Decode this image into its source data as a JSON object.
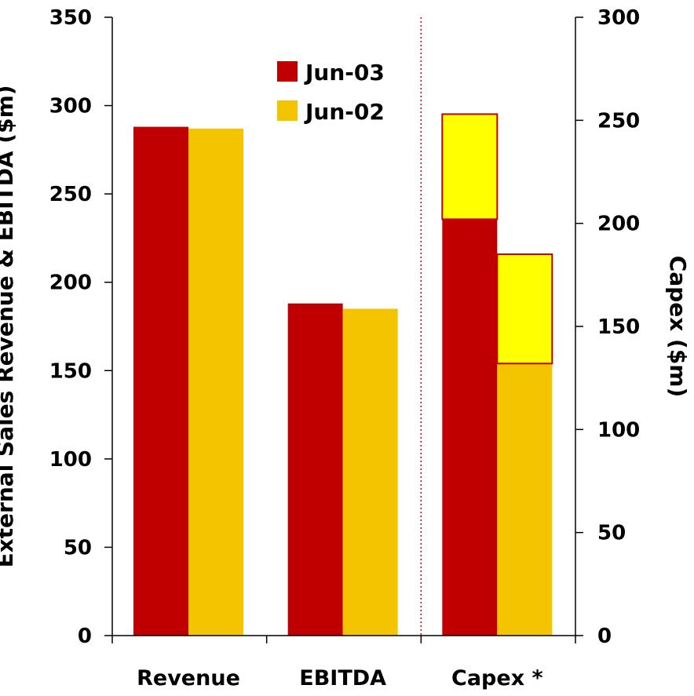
{
  "chart_data": {
    "type": "bar",
    "ylabel": "External Sales Revenue & EBITDA ($m)",
    "y2label": "Capex ($m)",
    "ylim": [
      0,
      350
    ],
    "y2lim": [
      0,
      300
    ],
    "yticks": [
      0,
      50,
      100,
      150,
      200,
      250,
      300,
      350
    ],
    "y2ticks": [
      0,
      50,
      100,
      150,
      200,
      250,
      300
    ],
    "categories": [
      "Revenue",
      "EBITDA",
      "Capex *"
    ],
    "legend_position": "top-center",
    "series": [
      {
        "name": "Jun-03",
        "color": "#c00000",
        "values": [
          288,
          188,
          202
        ]
      },
      {
        "name": "Jun-02",
        "color": "#f5c400",
        "values": [
          287,
          185,
          132
        ]
      }
    ],
    "stacked_overlay": {
      "category": "Capex *",
      "axis": "secondary",
      "color": "#ffff00",
      "border_color": "#c00000",
      "segments": [
        {
          "series": "Jun-03",
          "from": 202,
          "to": 253
        },
        {
          "series": "Jun-02",
          "from": 132,
          "to": 185
        }
      ]
    },
    "separator": {
      "between": [
        "EBITDA",
        "Capex *"
      ],
      "style": "dotted",
      "color": "#c00000"
    },
    "grid": false
  }
}
